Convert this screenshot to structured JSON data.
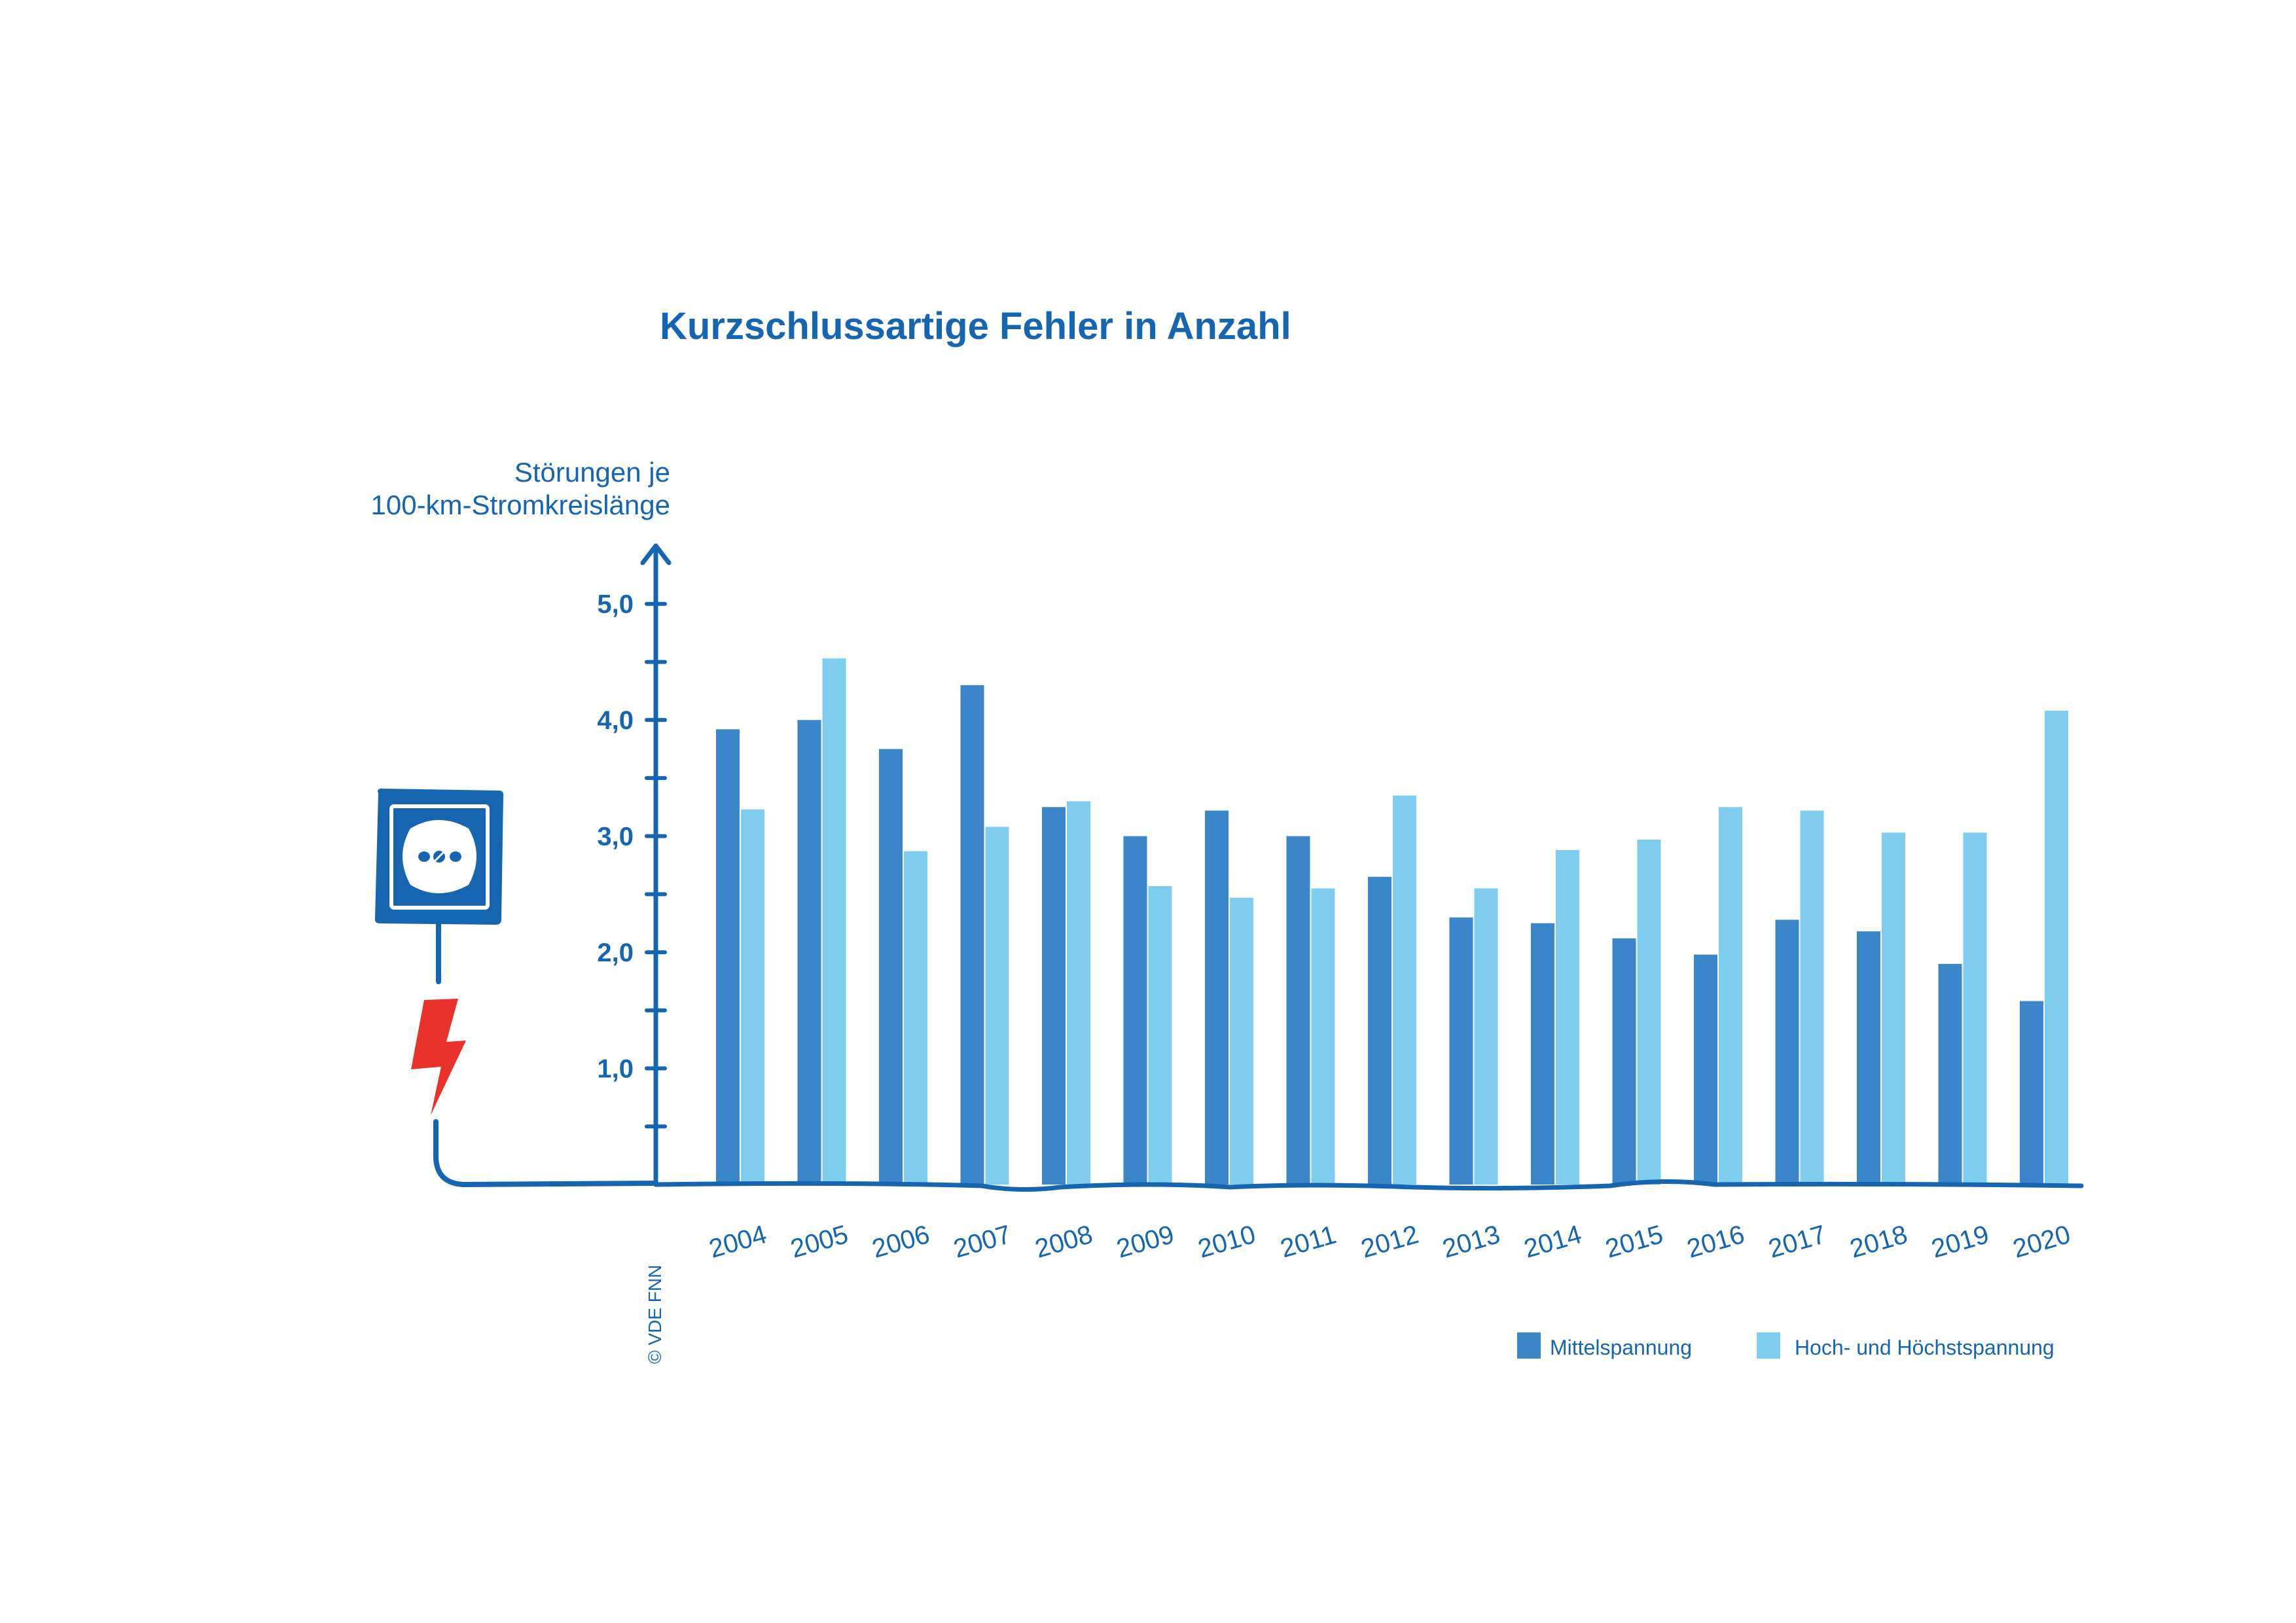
{
  "colors": {
    "primary_text": "#1565b0",
    "series_mittel": "#3a86c8",
    "series_hoch": "#7ecdef",
    "axis": "#1565b0",
    "bolt": "#e8322b"
  },
  "icons": {
    "socket": "power-socket-icon",
    "bolt": "lightning-bolt-icon"
  },
  "copyright": "© VDE FNN",
  "chart_data": {
    "type": "bar",
    "title": "Kurzschlussartige Fehler in Anzahl",
    "ylabel_lines": [
      "Störungen je",
      "100-km-Stromkreislänge"
    ],
    "xlabel": "",
    "ylim": [
      0,
      5.5
    ],
    "yticks": [
      {
        "value": 1.0,
        "label": "1,0"
      },
      {
        "value": 2.0,
        "label": "2,0"
      },
      {
        "value": 3.0,
        "label": "3,0"
      },
      {
        "value": 4.0,
        "label": "4,0"
      },
      {
        "value": 5.0,
        "label": "5,0"
      }
    ],
    "minor_tick_step": 0.5,
    "grid": false,
    "legend_position": "bottom-right",
    "categories": [
      "2004",
      "2005",
      "2006",
      "2007",
      "2008",
      "2009",
      "2010",
      "2011",
      "2012",
      "2013",
      "2014",
      "2015",
      "2016",
      "2017",
      "2018",
      "2019",
      "2020"
    ],
    "series": [
      {
        "name": "Mittelspannung",
        "values": [
          3.92,
          4.0,
          3.75,
          4.3,
          3.25,
          3.0,
          3.22,
          3.0,
          2.65,
          2.3,
          2.25,
          2.12,
          1.98,
          2.28,
          2.18,
          1.9,
          1.58
        ]
      },
      {
        "name": "Hoch- und Höchstspannung",
        "values": [
          3.23,
          4.53,
          2.87,
          3.08,
          3.3,
          2.57,
          2.47,
          2.55,
          3.35,
          2.55,
          2.88,
          2.97,
          3.25,
          3.22,
          3.03,
          3.03,
          4.08
        ]
      }
    ]
  }
}
